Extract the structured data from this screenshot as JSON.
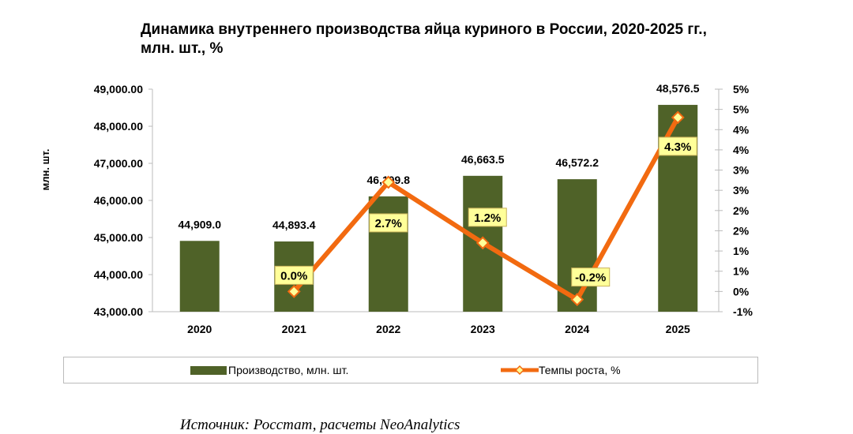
{
  "chart_data": {
    "type": "bar+line",
    "title_line1": "Динамика внутреннего производства яйца куриного в России, 2020-2025 гг.,",
    "title_line2": "млн. шт., %",
    "ylabel": "млн. шт.",
    "categories": [
      "2020",
      "2021",
      "2022",
      "2023",
      "2024",
      "2025"
    ],
    "series": [
      {
        "name": "Производство, млн. шт.",
        "type": "bar",
        "axis": "left",
        "values": [
          44909.0,
          44893.4,
          46109.8,
          46663.5,
          46572.2,
          48576.5
        ],
        "labels": [
          "44,909.0",
          "44,893.4",
          "46,109.8",
          "46,663.5",
          "46,572.2",
          "48,576.5"
        ],
        "color": "#4f6228"
      },
      {
        "name": "Темпы роста, %",
        "type": "line",
        "axis": "right",
        "values": [
          null,
          0.0,
          2.7,
          1.2,
          -0.2,
          4.3
        ],
        "labels": [
          "",
          "0.0%",
          "2.7%",
          "1.2%",
          "-0.2%",
          "4.3%"
        ],
        "color": "#f26a10",
        "marker_fill": "#ffff99"
      }
    ],
    "ylim_left": [
      43000,
      49000
    ],
    "yticks_left": [
      "43,000.00",
      "44,000.00",
      "45,000.00",
      "46,000.00",
      "47,000.00",
      "48,000.00",
      "49,000.00"
    ],
    "ylim_right": [
      -0.5,
      5.0
    ],
    "yticks_right": [
      "-1%",
      "0%",
      "1%",
      "1%",
      "2%",
      "2%",
      "3%",
      "3%",
      "4%",
      "4%",
      "5%",
      "5%"
    ],
    "grid": false,
    "legend_position": "bottom"
  },
  "source": "Источник: Росстат, расчеты NeoAnalytics"
}
